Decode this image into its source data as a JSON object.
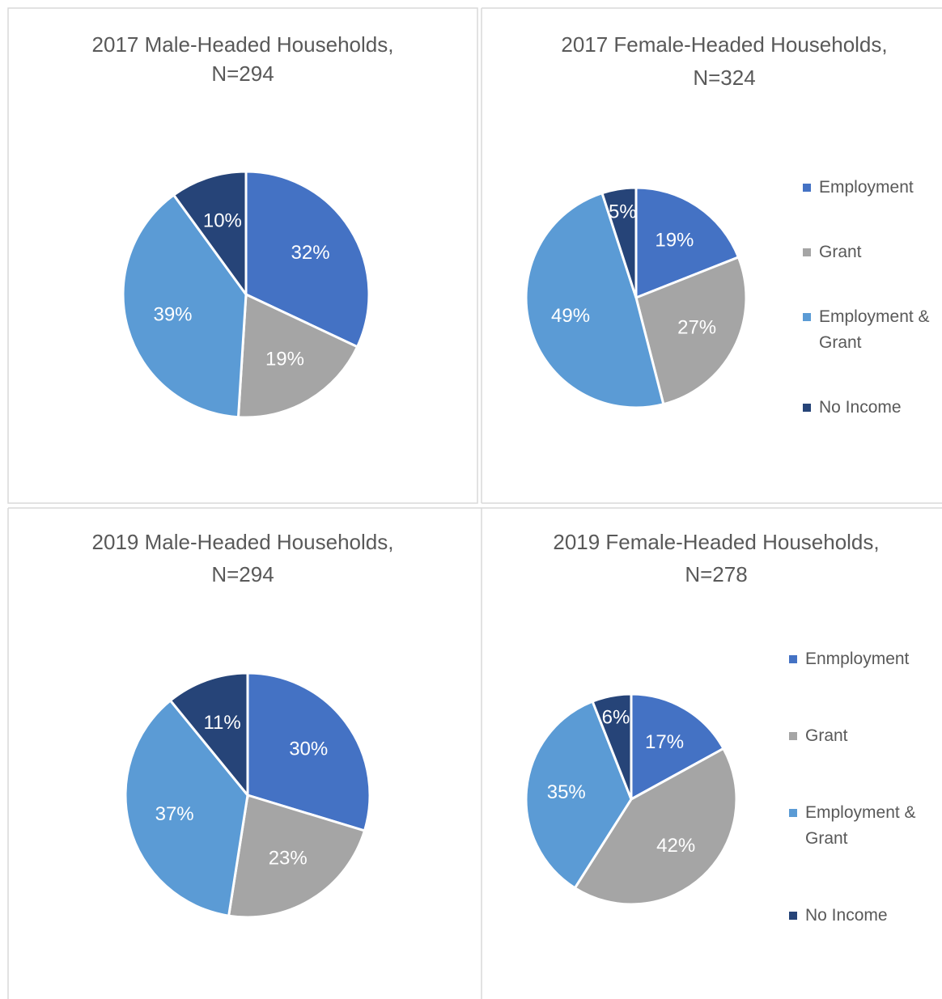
{
  "chart_data": [
    {
      "type": "pie",
      "title": [
        "2017 Male-Headed Households,",
        "N=294"
      ],
      "values": [
        32,
        19,
        39,
        10
      ],
      "value_labels": [
        "32%",
        "19%",
        "39%",
        "10%"
      ],
      "colors": [
        "#4472c4",
        "#a5a5a5",
        "#5b9bd5",
        "#264478"
      ]
    },
    {
      "type": "pie",
      "title": [
        "2017 Female-Headed Households,",
        "N=324"
      ],
      "categories": [
        "Employment",
        "Grant",
        "Employment & Grant",
        "No Income"
      ],
      "values": [
        19,
        27,
        49,
        5
      ],
      "value_labels": [
        "19%",
        "27%",
        "49%",
        "5%"
      ],
      "colors": [
        "#4472c4",
        "#a5a5a5",
        "#5b9bd5",
        "#264478"
      ],
      "legend": "right"
    },
    {
      "type": "pie",
      "title": [
        "2019 Male-Headed Households,",
        "N=294"
      ],
      "values": [
        30,
        23,
        37,
        11
      ],
      "value_labels": [
        "30%",
        "23%",
        "37%",
        "11%"
      ],
      "colors": [
        "#4472c4",
        "#a5a5a5",
        "#5b9bd5",
        "#264478"
      ]
    },
    {
      "type": "pie",
      "title": [
        "2019 Female-Headed Households,",
        "N=278"
      ],
      "categories": [
        "Enmployment",
        "Grant",
        "Employment & Grant",
        "No Income"
      ],
      "values": [
        17,
        42,
        35,
        6
      ],
      "value_labels": [
        "17%",
        "42%",
        "35%",
        "6%"
      ],
      "colors": [
        "#4472c4",
        "#a5a5a5",
        "#5b9bd5",
        "#264478"
      ],
      "legend": "right"
    }
  ]
}
